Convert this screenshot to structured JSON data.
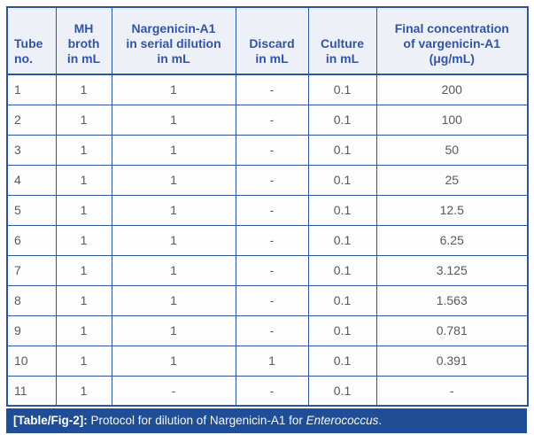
{
  "colors": {
    "border_blue": "#2b559c",
    "header_text_blue": "#3155a3",
    "header_bg": "#edf0f7",
    "body_text_gray": "#58595b",
    "caption_bar_bg": "#1f4e97",
    "caption_text": "#ffffff"
  },
  "table": {
    "headers": [
      {
        "id": "tube-no",
        "label": "Tube\nno."
      },
      {
        "id": "mh-broth",
        "label": "MH\nbroth\nin mL"
      },
      {
        "id": "nargenicin-serial-dilution",
        "label": "Nargenicin-A1\nin serial dilution\nin mL"
      },
      {
        "id": "discard",
        "label": "Discard\nin mL"
      },
      {
        "id": "culture",
        "label": "Culture\nin mL"
      },
      {
        "id": "final-concentration",
        "label": "Final concentration\nof vargenicin-A1\n(μg/mL)"
      }
    ],
    "rows": [
      [
        "1",
        "1",
        "1",
        "-",
        "0.1",
        "200"
      ],
      [
        "2",
        "1",
        "1",
        "-",
        "0.1",
        "100"
      ],
      [
        "3",
        "1",
        "1",
        "-",
        "0.1",
        "50"
      ],
      [
        "4",
        "1",
        "1",
        "-",
        "0.1",
        "25"
      ],
      [
        "5",
        "1",
        "1",
        "-",
        "0.1",
        "12.5"
      ],
      [
        "6",
        "1",
        "1",
        "-",
        "0.1",
        "6.25"
      ],
      [
        "7",
        "1",
        "1",
        "-",
        "0.1",
        "3.125"
      ],
      [
        "8",
        "1",
        "1",
        "-",
        "0.1",
        "1.563"
      ],
      [
        "9",
        "1",
        "1",
        "-",
        "0.1",
        "0.781"
      ],
      [
        "10",
        "1",
        "1",
        "1",
        "0.1",
        "0.391"
      ],
      [
        "11",
        "1",
        "-",
        "-",
        "0.1",
        "-"
      ]
    ]
  },
  "caption": {
    "tag": "[Table/Fig-2]:",
    "text": " Protocol for dilution of Nargenicin-A1 for ",
    "species": "Enterococcus",
    "period": "."
  }
}
